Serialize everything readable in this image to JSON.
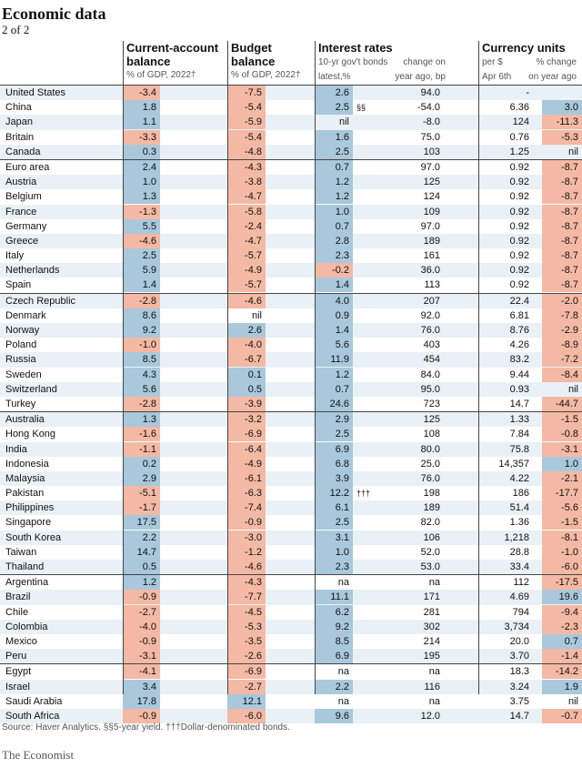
{
  "header": {
    "title": "Economic data",
    "subtitle": "2 of 2"
  },
  "columns": {
    "current_account": {
      "title_line1": "Current-account",
      "title_line2": "balance",
      "sub": "% of GDP, 2022†"
    },
    "budget": {
      "title_line1": "Budget",
      "title_line2": "balance",
      "sub": "% of GDP, 2022†"
    },
    "interest": {
      "title": "Interest rates",
      "sub1_left": "10-yr gov't bonds",
      "sub2_left": "latest,%",
      "sub1_right": "change on",
      "sub2_right": "year ago, bp"
    },
    "currency": {
      "title": "Currency units",
      "sub1_left": "per $",
      "sub2_left": "Apr 6th",
      "sub1_right": "% change",
      "sub2_right": "on year ago"
    }
  },
  "rows": [
    {
      "country": "United States",
      "ca": "-3.4",
      "budget": "-7.5",
      "rate": "2.6",
      "note": "",
      "bp": "94.0",
      "per_usd": "-",
      "chg": ""
    },
    {
      "country": "China",
      "ca": "1.8",
      "budget": "-5.4",
      "rate": "2.5",
      "note": "§§",
      "bp": "-54.0",
      "per_usd": "6.36",
      "chg": "3.0"
    },
    {
      "country": "Japan",
      "ca": "1.1",
      "budget": "-5.9",
      "rate": "nil",
      "note": "",
      "bp": "-8.0",
      "per_usd": "124",
      "chg": "-11.3"
    },
    {
      "country": "Britain",
      "ca": "-3.3",
      "budget": "-5.4",
      "rate": "1.6",
      "note": "",
      "bp": "75.0",
      "per_usd": "0.76",
      "chg": "-5.3"
    },
    {
      "country": "Canada",
      "ca": "0.3",
      "budget": "-4.8",
      "rate": "2.5",
      "note": "",
      "bp": "103",
      "per_usd": "1.25",
      "chg": "nil"
    },
    {
      "country": "Euro area",
      "ca": "2.4",
      "budget": "-4.3",
      "rate": "0.7",
      "note": "",
      "bp": "97.0",
      "per_usd": "0.92",
      "chg": "-8.7"
    },
    {
      "country": "Austria",
      "ca": "1.0",
      "budget": "-3.8",
      "rate": "1.2",
      "note": "",
      "bp": "125",
      "per_usd": "0.92",
      "chg": "-8.7"
    },
    {
      "country": "Belgium",
      "ca": "1.3",
      "budget": "-4.7",
      "rate": "1.2",
      "note": "",
      "bp": "124",
      "per_usd": "0.92",
      "chg": "-8.7"
    },
    {
      "country": "France",
      "ca": "-1.3",
      "budget": "-5.8",
      "rate": "1.0",
      "note": "",
      "bp": "109",
      "per_usd": "0.92",
      "chg": "-8.7"
    },
    {
      "country": "Germany",
      "ca": "5.5",
      "budget": "-2.4",
      "rate": "0.7",
      "note": "",
      "bp": "97.0",
      "per_usd": "0.92",
      "chg": "-8.7"
    },
    {
      "country": "Greece",
      "ca": "-4.6",
      "budget": "-4.7",
      "rate": "2.8",
      "note": "",
      "bp": "189",
      "per_usd": "0.92",
      "chg": "-8.7"
    },
    {
      "country": "Italy",
      "ca": "2.5",
      "budget": "-5.7",
      "rate": "2.3",
      "note": "",
      "bp": "161",
      "per_usd": "0.92",
      "chg": "-8.7"
    },
    {
      "country": "Netherlands",
      "ca": "5.9",
      "budget": "-4.9",
      "rate": "-0.2",
      "note": "",
      "bp": "36.0",
      "per_usd": "0.92",
      "chg": "-8.7"
    },
    {
      "country": "Spain",
      "ca": "1.4",
      "budget": "-5.7",
      "rate": "1.4",
      "note": "",
      "bp": "113",
      "per_usd": "0.92",
      "chg": "-8.7"
    },
    {
      "country": "Czech Republic",
      "ca": "-2.8",
      "budget": "-4.6",
      "rate": "4.0",
      "note": "",
      "bp": "207",
      "per_usd": "22.4",
      "chg": "-2.0"
    },
    {
      "country": "Denmark",
      "ca": "8.6",
      "budget": "nil",
      "rate": "0.9",
      "note": "",
      "bp": "92.0",
      "per_usd": "6.81",
      "chg": "-7.8"
    },
    {
      "country": "Norway",
      "ca": "9.2",
      "budget": "2.6",
      "rate": "1.4",
      "note": "",
      "bp": "76.0",
      "per_usd": "8.76",
      "chg": "-2.9"
    },
    {
      "country": "Poland",
      "ca": "-1.0",
      "budget": "-4.0",
      "rate": "5.6",
      "note": "",
      "bp": "403",
      "per_usd": "4.26",
      "chg": "-8.9"
    },
    {
      "country": "Russia",
      "ca": "8.5",
      "budget": "-6.7",
      "rate": "11.9",
      "note": "",
      "bp": "454",
      "per_usd": "83.2",
      "chg": "-7.2"
    },
    {
      "country": "Sweden",
      "ca": "4.3",
      "budget": "0.1",
      "rate": "1.2",
      "note": "",
      "bp": "84.0",
      "per_usd": "9.44",
      "chg": "-8.4"
    },
    {
      "country": "Switzerland",
      "ca": "5.6",
      "budget": "0.5",
      "rate": "0.7",
      "note": "",
      "bp": "95.0",
      "per_usd": "0.93",
      "chg": "nil"
    },
    {
      "country": "Turkey",
      "ca": "-2.8",
      "budget": "-3.9",
      "rate": "24.6",
      "note": "",
      "bp": "723",
      "per_usd": "14.7",
      "chg": "-44.7"
    },
    {
      "country": "Australia",
      "ca": "1.3",
      "budget": "-3.2",
      "rate": "2.9",
      "note": "",
      "bp": "125",
      "per_usd": "1.33",
      "chg": "-1.5"
    },
    {
      "country": "Hong Kong",
      "ca": "-1.6",
      "budget": "-6.9",
      "rate": "2.5",
      "note": "",
      "bp": "108",
      "per_usd": "7.84",
      "chg": "-0.8"
    },
    {
      "country": "India",
      "ca": "-1.1",
      "budget": "-6.4",
      "rate": "6.9",
      "note": "",
      "bp": "80.0",
      "per_usd": "75.8",
      "chg": "-3.1"
    },
    {
      "country": "Indonesia",
      "ca": "0.2",
      "budget": "-4.9",
      "rate": "6.8",
      "note": "",
      "bp": "25.0",
      "per_usd": "14,357",
      "chg": "1.0"
    },
    {
      "country": "Malaysia",
      "ca": "2.9",
      "budget": "-6.1",
      "rate": "3.9",
      "note": "",
      "bp": "76.0",
      "per_usd": "4.22",
      "chg": "-2.1"
    },
    {
      "country": "Pakistan",
      "ca": "-5.1",
      "budget": "-6.3",
      "rate": "12.2",
      "note": "†††",
      "bp": "198",
      "per_usd": "186",
      "chg": "-17.7"
    },
    {
      "country": "Philippines",
      "ca": "-1.7",
      "budget": "-7.4",
      "rate": "6.1",
      "note": "",
      "bp": "189",
      "per_usd": "51.4",
      "chg": "-5.6"
    },
    {
      "country": "Singapore",
      "ca": "17.5",
      "budget": "-0.9",
      "rate": "2.5",
      "note": "",
      "bp": "82.0",
      "per_usd": "1.36",
      "chg": "-1.5"
    },
    {
      "country": "South Korea",
      "ca": "2.2",
      "budget": "-3.0",
      "rate": "3.1",
      "note": "",
      "bp": "106",
      "per_usd": "1,218",
      "chg": "-8.1"
    },
    {
      "country": "Taiwan",
      "ca": "14.7",
      "budget": "-1.2",
      "rate": "1.0",
      "note": "",
      "bp": "52.0",
      "per_usd": "28.8",
      "chg": "-1.0"
    },
    {
      "country": "Thailand",
      "ca": "0.5",
      "budget": "-4.6",
      "rate": "2.3",
      "note": "",
      "bp": "53.0",
      "per_usd": "33.4",
      "chg": "-6.0"
    },
    {
      "country": "Argentina",
      "ca": "1.2",
      "budget": "-4.3",
      "rate": "na",
      "note": "",
      "bp": "na",
      "per_usd": "112",
      "chg": "-17.5"
    },
    {
      "country": "Brazil",
      "ca": "-0.9",
      "budget": "-7.7",
      "rate": "11.1",
      "note": "",
      "bp": "171",
      "per_usd": "4.69",
      "chg": "19.6"
    },
    {
      "country": "Chile",
      "ca": "-2.7",
      "budget": "-4.5",
      "rate": "6.2",
      "note": "",
      "bp": "281",
      "per_usd": "794",
      "chg": "-9.4"
    },
    {
      "country": "Colombia",
      "ca": "-4.0",
      "budget": "-5.3",
      "rate": "9.2",
      "note": "",
      "bp": "302",
      "per_usd": "3,734",
      "chg": "-2.3"
    },
    {
      "country": "Mexico",
      "ca": "-0.9",
      "budget": "-3.5",
      "rate": "8.5",
      "note": "",
      "bp": "214",
      "per_usd": "20.0",
      "chg": "0.7"
    },
    {
      "country": "Peru",
      "ca": "-3.1",
      "budget": "-2.6",
      "rate": "6.9",
      "note": "",
      "bp": "195",
      "per_usd": "3.70",
      "chg": "-1.4"
    },
    {
      "country": "Egypt",
      "ca": "-4.1",
      "budget": "-6.9",
      "rate": "na",
      "note": "",
      "bp": "na",
      "per_usd": "18.3",
      "chg": "-14.2"
    },
    {
      "country": "Israel",
      "ca": "3.4",
      "budget": "-2.7",
      "rate": "2.2",
      "note": "",
      "bp": "116",
      "per_usd": "3.24",
      "chg": "1.9"
    },
    {
      "country": "Saudi Arabia",
      "ca": "17.8",
      "budget": "12.1",
      "rate": "na",
      "note": "",
      "bp": "na",
      "per_usd": "3.75",
      "chg": "nil"
    },
    {
      "country": "South Africa",
      "ca": "-0.9",
      "budget": "-6.0",
      "rate": "9.6",
      "note": "",
      "bp": "12.0",
      "per_usd": "14.7",
      "chg": "-0.7"
    }
  ],
  "group_starts": [
    5,
    14,
    22,
    33,
    39
  ],
  "footer": {
    "source": "Source: Haver Analytics. §§5-year yield. †††Dollar-denominated bonds.",
    "brand": "The Economist"
  },
  "colors": {
    "positive": "#a9c8dc",
    "negative": "#f4b9a4",
    "row_stripe": "#e9f1f6"
  }
}
